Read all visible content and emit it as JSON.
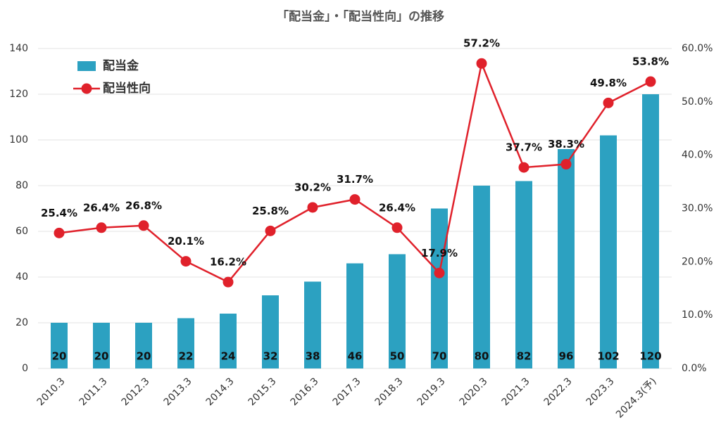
{
  "chart_data": {
    "type": "bar",
    "title": "「配当金」・「配当性向」の推移",
    "categories": [
      "2010.3",
      "2011.3",
      "2012.3",
      "2013.3",
      "2014.3",
      "2015.3",
      "2016.3",
      "2017.3",
      "2018.3",
      "2019.3",
      "2020.3",
      "2021.3",
      "2022.3",
      "2023.3",
      "2024.3(予)"
    ],
    "series": [
      {
        "name": "配当金",
        "color": "#2ca1c1",
        "values": [
          20,
          20,
          20,
          22,
          24,
          32,
          38,
          46,
          50,
          70,
          80,
          82,
          96,
          102,
          120
        ]
      },
      {
        "name": "配当性向",
        "color": "#e0212b",
        "type": "line",
        "axis": "y2",
        "values": [
          25.4,
          26.4,
          26.8,
          20.1,
          16.2,
          25.8,
          30.2,
          31.7,
          26.4,
          17.9,
          57.2,
          37.7,
          38.3,
          49.8,
          53.8
        ],
        "value_labels": [
          "25.4%",
          "26.4%",
          "26.8%",
          "20.1%",
          "16.2%",
          "25.8%",
          "30.2%",
          "31.7%",
          "26.4%",
          "17.9%",
          "57.2%",
          "37.7%",
          "38.3%",
          "49.8%",
          "53.8%"
        ]
      }
    ],
    "ylim": [
      0,
      140
    ],
    "yticks": [
      0,
      20,
      40,
      60,
      80,
      100,
      120,
      140
    ],
    "y2lim": [
      0,
      60
    ],
    "y2ticks": [
      {
        "value": 0,
        "label": "0.0%"
      },
      {
        "value": 10,
        "label": "10.0%"
      },
      {
        "value": 20,
        "label": "20.0%"
      },
      {
        "value": 30,
        "label": "30.0%"
      },
      {
        "value": 40,
        "label": "40.0%"
      },
      {
        "value": 50,
        "label": "50.0%"
      },
      {
        "value": 60,
        "label": "60.0%"
      }
    ],
    "grid": true,
    "legend": "top-left"
  }
}
